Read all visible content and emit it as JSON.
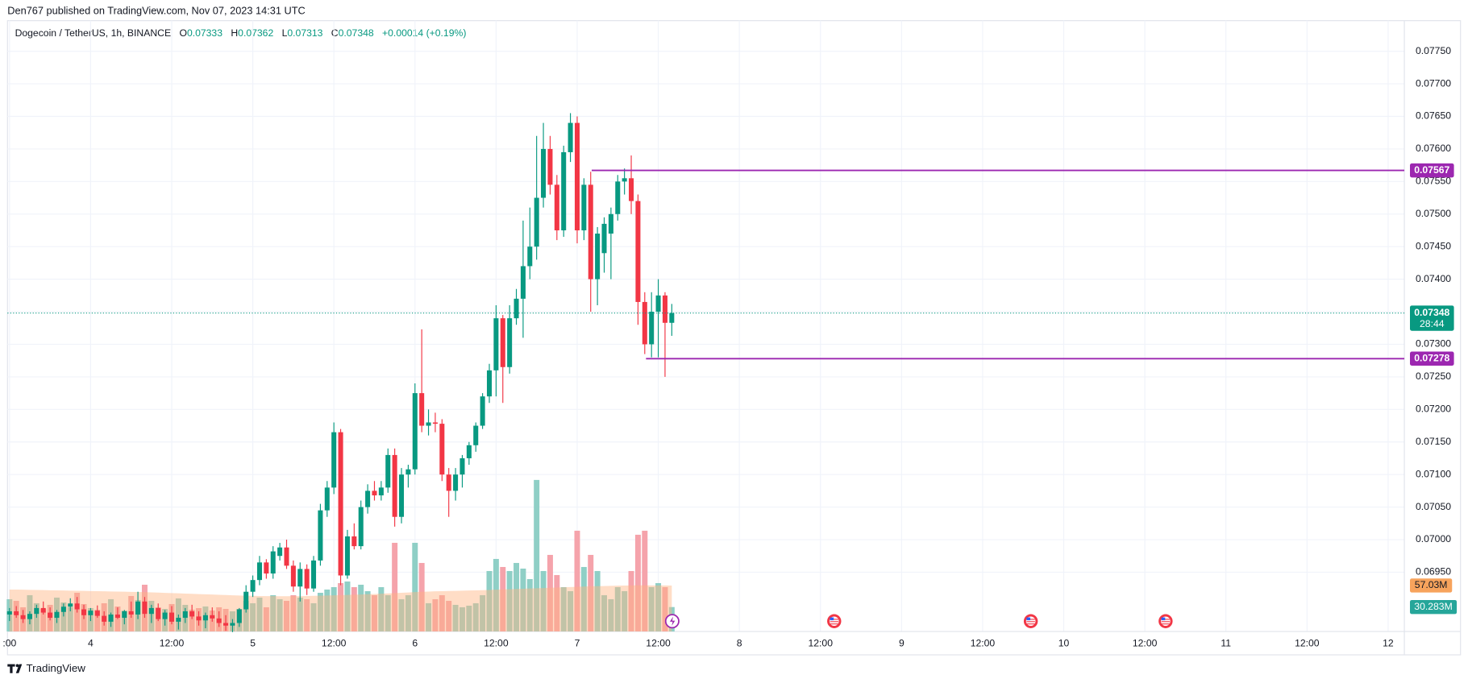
{
  "header": {
    "publisher": "Den767 published on TradingView.com, Nov 07, 2023 14:31 UTC",
    "brand": "TradingView"
  },
  "chart_data": {
    "type": "candlestick",
    "symbol": "Dogecoin / TetherUS, 1h, BINANCE",
    "ohlc_labels": [
      "O",
      "H",
      "L",
      "C"
    ],
    "change": "+0.00014 (+0.19%)",
    "open": [
      0.06885,
      0.0689,
      0.06884,
      0.06878,
      0.06886,
      0.06895,
      0.06888,
      0.0688,
      0.06889,
      0.06897,
      0.06902,
      0.06893,
      0.06884,
      0.06891,
      0.06883,
      0.06874,
      0.06885,
      0.0688,
      0.0689,
      0.06885,
      0.06905,
      0.06886,
      0.06895,
      0.06878,
      0.06888,
      0.06874,
      0.0688,
      0.0689,
      0.06882,
      0.06876,
      0.06884,
      0.06879,
      0.06872,
      0.06868,
      0.06872,
      0.06893,
      0.0692,
      0.06938,
      0.06965,
      0.06948,
      0.06975,
      0.06988,
      0.0696,
      0.06928,
      0.06955,
      0.06925,
      0.06968,
      0.07045,
      0.0708,
      0.07165,
      0.06945,
      0.07005,
      0.0699,
      0.0705,
      0.07075,
      0.07068,
      0.0708,
      0.0713,
      0.07035,
      0.071,
      0.07108,
      0.07225,
      0.07175,
      0.0718,
      0.07178,
      0.071,
      0.07075,
      0.071,
      0.07125,
      0.07145,
      0.07175,
      0.0722,
      0.0726,
      0.0734,
      0.07265,
      0.0734,
      0.0737,
      0.0742,
      0.0745,
      0.07525,
      0.076,
      0.07545,
      0.07475,
      0.07595,
      0.0764,
      0.07475,
      0.07545,
      0.074,
      0.0744,
      0.0747,
      0.075,
      0.0755,
      0.07555,
      0.0752,
      0.07365,
      0.073,
      0.0735,
      0.07375,
      0.07333
    ],
    "high": [
      0.06895,
      0.06898,
      0.06892,
      0.0689,
      0.069,
      0.06905,
      0.06896,
      0.06892,
      0.06902,
      0.0691,
      0.06912,
      0.069,
      0.06895,
      0.06899,
      0.0689,
      0.06888,
      0.06896,
      0.06892,
      0.06905,
      0.0692,
      0.06912,
      0.069,
      0.06902,
      0.06892,
      0.06898,
      0.06885,
      0.06895,
      0.069,
      0.0689,
      0.06888,
      0.06896,
      0.0689,
      0.06884,
      0.06878,
      0.06895,
      0.0693,
      0.06945,
      0.06975,
      0.0697,
      0.0699,
      0.06995,
      0.07,
      0.06968,
      0.06965,
      0.06962,
      0.06975,
      0.07055,
      0.0709,
      0.0718,
      0.0717,
      0.07015,
      0.07025,
      0.0706,
      0.07085,
      0.0709,
      0.0709,
      0.0714,
      0.0714,
      0.0711,
      0.07115,
      0.0724,
      0.07323,
      0.072,
      0.07195,
      0.07185,
      0.0711,
      0.0711,
      0.0713,
      0.0715,
      0.0718,
      0.07225,
      0.0727,
      0.0736,
      0.07345,
      0.0736,
      0.07385,
      0.0749,
      0.0751,
      0.0762,
      0.0764,
      0.0762,
      0.0756,
      0.07605,
      0.07655,
      0.0765,
      0.07555,
      0.07565,
      0.0748,
      0.07495,
      0.0751,
      0.0756,
      0.0757,
      0.0759,
      0.0753,
      0.0738,
      0.0738,
      0.074,
      0.0738,
      0.07362
    ],
    "low": [
      0.06875,
      0.0688,
      0.06872,
      0.0687,
      0.0688,
      0.06885,
      0.06876,
      0.06872,
      0.06882,
      0.0689,
      0.06888,
      0.06878,
      0.06875,
      0.0688,
      0.06868,
      0.06866,
      0.06878,
      0.0687,
      0.0688,
      0.06878,
      0.0688,
      0.06872,
      0.06875,
      0.06868,
      0.0687,
      0.06862,
      0.06872,
      0.06878,
      0.06868,
      0.06864,
      0.06874,
      0.06866,
      0.0686,
      0.06858,
      0.06866,
      0.06888,
      0.06912,
      0.0693,
      0.0694,
      0.0694,
      0.06968,
      0.06955,
      0.0692,
      0.06905,
      0.06915,
      0.0692,
      0.0696,
      0.07035,
      0.0707,
      0.0693,
      0.0694,
      0.06985,
      0.06985,
      0.0704,
      0.0706,
      0.0706,
      0.07072,
      0.0702,
      0.07025,
      0.0708,
      0.071,
      0.07165,
      0.0716,
      0.07165,
      0.0709,
      0.07035,
      0.0706,
      0.0708,
      0.07115,
      0.07135,
      0.0717,
      0.0721,
      0.0722,
      0.0721,
      0.07255,
      0.0733,
      0.0731,
      0.074,
      0.0743,
      0.0751,
      0.0753,
      0.0746,
      0.07465,
      0.0758,
      0.07455,
      0.0746,
      0.0735,
      0.0736,
      0.0741,
      0.074,
      0.0749,
      0.0753,
      0.075,
      0.0733,
      0.07285,
      0.0728,
      0.0728,
      0.0725,
      0.07313
    ],
    "close": [
      0.0689,
      0.06884,
      0.06878,
      0.06886,
      0.06895,
      0.06888,
      0.0688,
      0.06889,
      0.06897,
      0.06902,
      0.06893,
      0.06884,
      0.06891,
      0.06883,
      0.06874,
      0.06885,
      0.0688,
      0.0689,
      0.06885,
      0.06905,
      0.06886,
      0.06895,
      0.06878,
      0.06888,
      0.06874,
      0.0688,
      0.0689,
      0.06882,
      0.06876,
      0.06884,
      0.06879,
      0.06872,
      0.06868,
      0.06872,
      0.06893,
      0.0692,
      0.06938,
      0.06965,
      0.06948,
      0.06982,
      0.06988,
      0.0696,
      0.06928,
      0.06955,
      0.06925,
      0.06968,
      0.07045,
      0.0708,
      0.07165,
      0.06945,
      0.07005,
      0.0699,
      0.0705,
      0.07075,
      0.07068,
      0.0708,
      0.0713,
      0.07035,
      0.071,
      0.07108,
      0.07225,
      0.07175,
      0.0718,
      0.07178,
      0.071,
      0.07075,
      0.071,
      0.07125,
      0.07145,
      0.07175,
      0.0722,
      0.0726,
      0.0734,
      0.07265,
      0.0734,
      0.0737,
      0.0742,
      0.0745,
      0.07525,
      0.076,
      0.07545,
      0.07475,
      0.07595,
      0.0764,
      0.07475,
      0.07545,
      0.074,
      0.0747,
      0.07485,
      0.075,
      0.0755,
      0.07555,
      0.0752,
      0.07365,
      0.073,
      0.0735,
      0.07375,
      0.07333,
      0.07348
    ],
    "volume": [
      40,
      38,
      30,
      45,
      35,
      28,
      33,
      42,
      36,
      30,
      48,
      34,
      29,
      27,
      35,
      40,
      31,
      26,
      44,
      39,
      58,
      38,
      30,
      28,
      34,
      41,
      33,
      27,
      29,
      31,
      26,
      30,
      28,
      25,
      28,
      38,
      35,
      42,
      30,
      45,
      40,
      38,
      45,
      42,
      40,
      35,
      48,
      52,
      55,
      60,
      62,
      55,
      58,
      50,
      45,
      55,
      45,
      110,
      40,
      45,
      110,
      85,
      35,
      40,
      45,
      38,
      33,
      30,
      32,
      35,
      45,
      75,
      90,
      80,
      75,
      85,
      78,
      65,
      188,
      75,
      95,
      70,
      55,
      50,
      125,
      80,
      95,
      75,
      45,
      40,
      55,
      50,
      75,
      120,
      125,
      55,
      60,
      55,
      30.283
    ],
    "volume_label": "30.283M",
    "volume_ma": [
      52,
      52,
      51.8,
      51.6,
      51.5,
      51.3,
      51.1,
      51,
      50.8,
      50.6,
      50.5,
      50.3,
      50.1,
      50,
      49.8,
      49.6,
      49.5,
      49.3,
      49.1,
      49,
      48.8,
      48.5,
      48.2,
      47.9,
      47.6,
      47.3,
      47,
      46.7,
      46.4,
      46.1,
      45.8,
      45.5,
      45.2,
      44.9,
      44.6,
      44.4,
      44.2,
      44,
      43.9,
      43.8,
      43.7,
      43.7,
      43.8,
      43.9,
      44,
      44.2,
      44.4,
      44.6,
      44.8,
      45,
      45.3,
      45.6,
      45.9,
      46.2,
      46.5,
      46.8,
      47.2,
      47.6,
      48,
      48.4,
      48.8,
      49.2,
      49.5,
      49.8,
      50,
      50.2,
      50.4,
      50.6,
      50.8,
      51,
      51.2,
      51.5,
      51.8,
      52.1,
      52.4,
      52.7,
      53,
      53.3,
      53.6,
      53.9,
      54.2,
      54.5,
      54.8,
      55.1,
      55.4,
      55.7,
      56,
      56.2,
      56.4,
      56.6,
      56.8,
      57,
      57.1,
      57.2,
      57.2,
      57.1,
      57.05,
      57.04,
      57.03
    ],
    "volume_ma_label": "57.03M",
    "countdown": "28:44",
    "levels": [
      {
        "value": 0.07567,
        "color": "#9c27b0"
      },
      {
        "value": 0.07278,
        "color": "#9c27b0"
      }
    ],
    "up_color": "#089981",
    "down_color": "#f23645",
    "volume_up_color": "#8fcfc6",
    "volume_down_color": "#f5a3ab",
    "volume_ma_color": "#ffb380",
    "xlim": [
      -0.3,
      206.4
    ],
    "xticks": [
      {
        "value": 0,
        "label": ":00"
      },
      {
        "value": 12,
        "label": "4"
      },
      {
        "value": 24,
        "label": "12:00"
      },
      {
        "value": 36,
        "label": "5"
      },
      {
        "value": 48,
        "label": "12:00"
      },
      {
        "value": 60,
        "label": "6"
      },
      {
        "value": 72,
        "label": "12:00"
      },
      {
        "value": 84,
        "label": "7"
      },
      {
        "value": 96,
        "label": "12:00"
      },
      {
        "value": 108,
        "label": "8"
      },
      {
        "value": 120,
        "label": "12:00"
      },
      {
        "value": 132,
        "label": "9"
      },
      {
        "value": 144,
        "label": "12:00"
      },
      {
        "value": 156,
        "label": "10"
      },
      {
        "value": 168,
        "label": "12:00"
      },
      {
        "value": 180,
        "label": "11"
      },
      {
        "value": 192,
        "label": "12:00"
      },
      {
        "value": 204,
        "label": "12"
      }
    ],
    "ylim": [
      0.06859,
      0.07797
    ],
    "yticks": [
      {
        "value": 0.0695,
        "label": "0.06950"
      },
      {
        "value": 0.07,
        "label": "0.07000"
      },
      {
        "value": 0.0705,
        "label": "0.07050"
      },
      {
        "value": 0.071,
        "label": "0.07100"
      },
      {
        "value": 0.0715,
        "label": "0.07150"
      },
      {
        "value": 0.072,
        "label": "0.07200"
      },
      {
        "value": 0.0725,
        "label": "0.07250"
      },
      {
        "value": 0.073,
        "label": "0.07300"
      },
      {
        "value": 0.0735,
        "label": "0.07350"
      },
      {
        "value": 0.074,
        "label": "0.07400"
      },
      {
        "value": 0.0745,
        "label": "0.07450"
      },
      {
        "value": 0.075,
        "label": "0.07500"
      },
      {
        "value": 0.0755,
        "label": "0.07550"
      },
      {
        "value": 0.076,
        "label": "0.07600"
      },
      {
        "value": 0.0765,
        "label": "0.07650"
      },
      {
        "value": 0.077,
        "label": "0.07700"
      },
      {
        "value": 0.0775,
        "label": "0.07750"
      }
    ],
    "grid": true
  }
}
